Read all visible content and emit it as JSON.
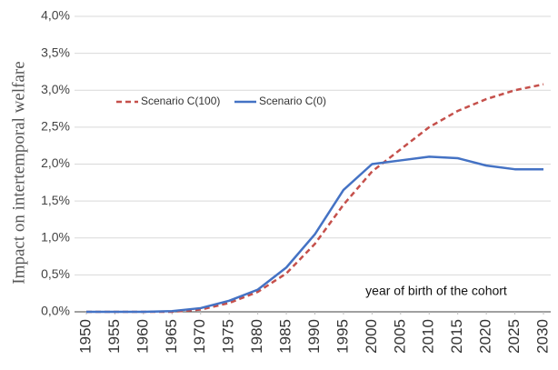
{
  "chart_data": {
    "type": "line",
    "ylabel": "Impact on intertemporal welfare",
    "annotation": "year of birth of the cohort",
    "x": [
      1950,
      1955,
      1960,
      1965,
      1970,
      1975,
      1980,
      1985,
      1990,
      1995,
      2000,
      2005,
      2010,
      2015,
      2020,
      2025,
      2030
    ],
    "series": [
      {
        "name": "Scenario C(100)",
        "color": "#c5504b",
        "dashed": true,
        "values": [
          0,
          0,
          0,
          0,
          0.03,
          0.12,
          0.27,
          0.52,
          0.92,
          1.45,
          1.9,
          2.2,
          2.5,
          2.72,
          2.88,
          3.0,
          3.08
        ]
      },
      {
        "name": "Scenario C(0)",
        "color": "#4472c4",
        "dashed": false,
        "values": [
          0,
          0,
          0,
          0.01,
          0.05,
          0.15,
          0.3,
          0.6,
          1.05,
          1.65,
          2.0,
          2.05,
          2.1,
          2.08,
          1.98,
          1.93,
          1.93
        ]
      }
    ],
    "xlim": [
      1950,
      2030
    ],
    "xticks": [
      1950,
      1955,
      1960,
      1965,
      1970,
      1975,
      1980,
      1985,
      1990,
      1995,
      2000,
      2005,
      2010,
      2015,
      2020,
      2025,
      2030
    ],
    "ylim": [
      0,
      4
    ],
    "yticks": [
      {
        "value": 0,
        "label": "0,0%"
      },
      {
        "value": 0.5,
        "label": "0,5%"
      },
      {
        "value": 1,
        "label": "1,0%"
      },
      {
        "value": 1.5,
        "label": "1,5%"
      },
      {
        "value": 2,
        "label": "2,0%"
      },
      {
        "value": 2.5,
        "label": "2,5%"
      },
      {
        "value": 3,
        "label": "3,0%"
      },
      {
        "value": 3.5,
        "label": "3,5%"
      },
      {
        "value": 4,
        "label": "4,0%"
      }
    ],
    "grid": true
  }
}
